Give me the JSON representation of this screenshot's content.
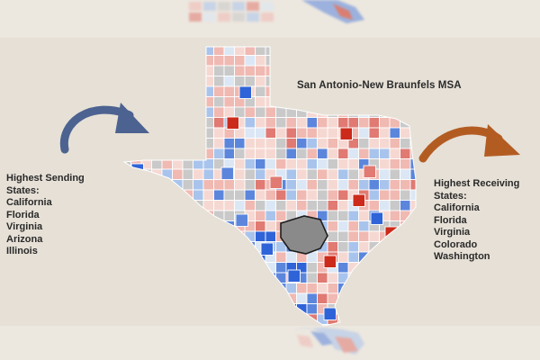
{
  "map": {
    "title": "San Antonio-New Braunfels MSA",
    "colors": {
      "background": "#e6e0d6",
      "county_border": "#ffffff",
      "highlight_msa": "#8a8a8a",
      "dark_red": "#cc2a1a",
      "red": "#e07a72",
      "light_red": "#f0b9b2",
      "pale_red": "#f6d8d2",
      "gray": "#c9c9c9",
      "pale_blue": "#dbe7f5",
      "light_blue": "#a9c4ec",
      "blue": "#5b86dc",
      "dark_blue": "#2f63d8"
    }
  },
  "sending": {
    "heading_line1": "Highest Sending",
    "heading_line2": "States:",
    "states": [
      "California",
      "Florida",
      "Virginia",
      "Arizona",
      "Illinois"
    ],
    "arrow_color": "#4c6290"
  },
  "receiving": {
    "heading_line1": "Highest Receiving",
    "heading_line2": "States:",
    "states": [
      "California",
      "Florida",
      "Virginia",
      "Colorado",
      "Washington"
    ],
    "arrow_color": "#b35c22"
  }
}
